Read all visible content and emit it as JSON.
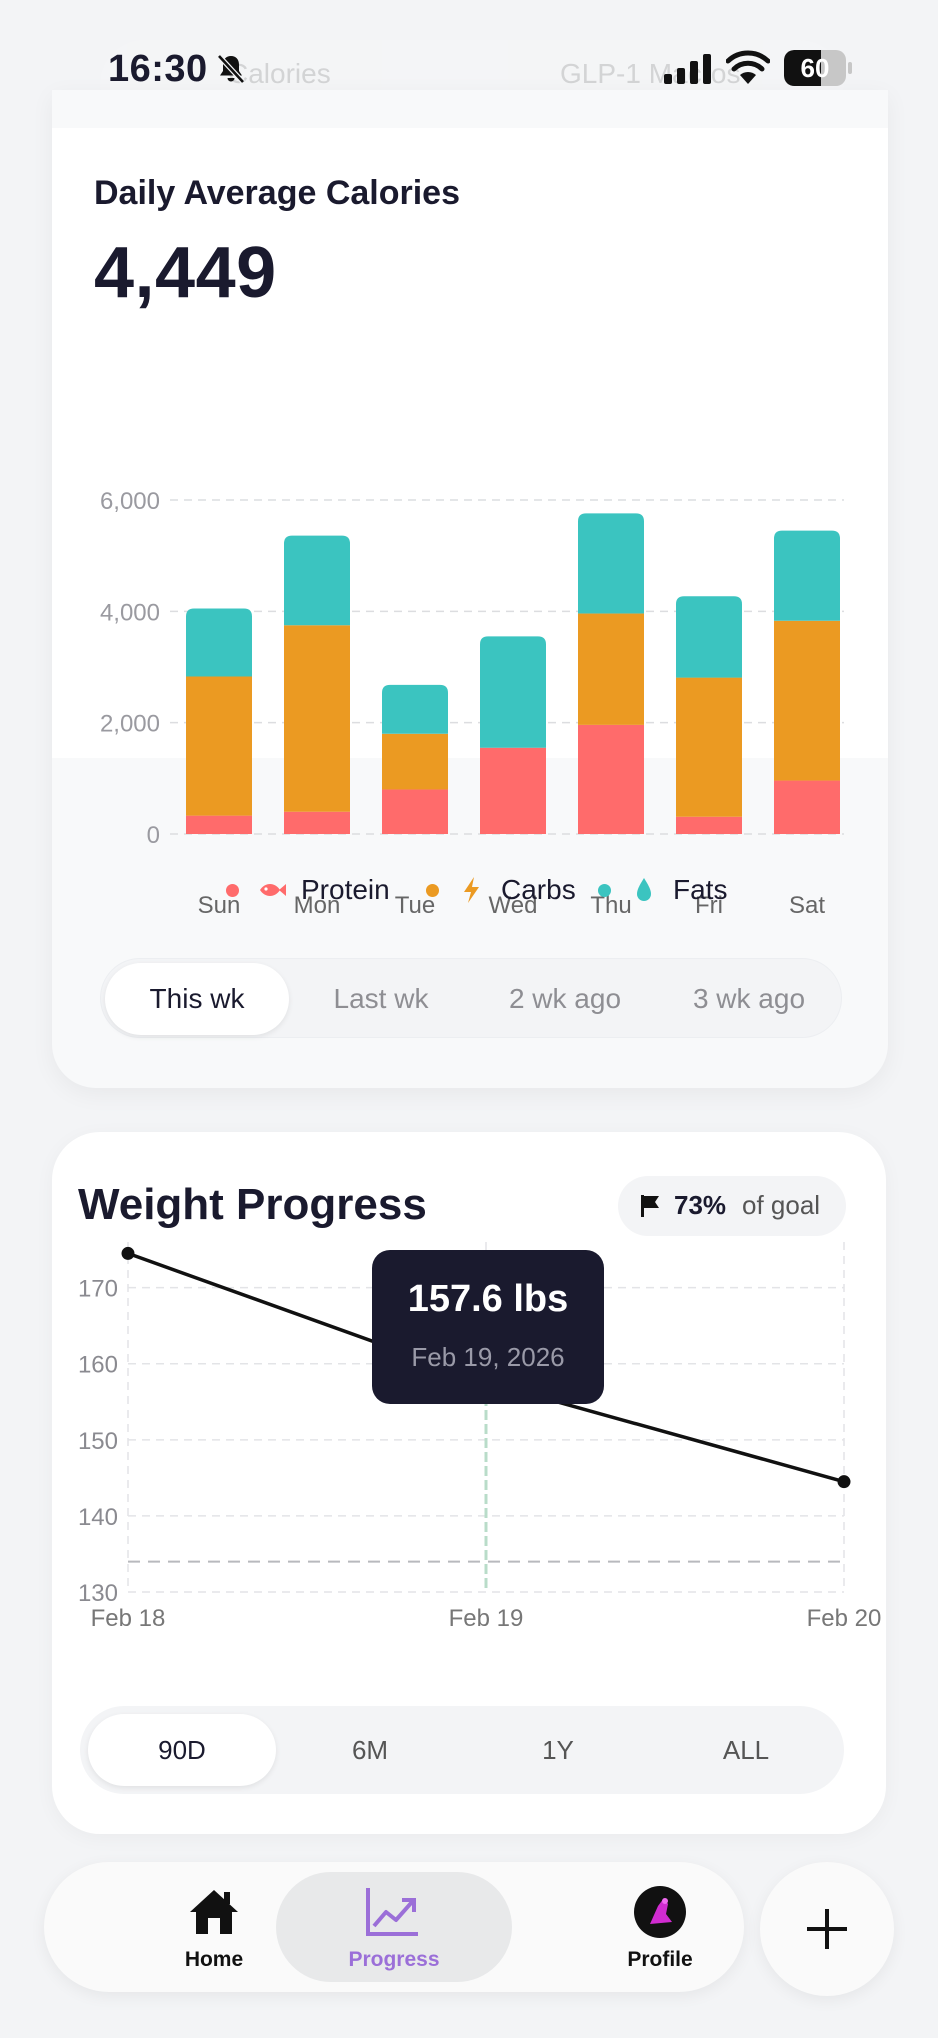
{
  "status_bar": {
    "time": "16:30",
    "battery": "60",
    "battery_level": 0.6
  },
  "top_tabs": [
    "Calories",
    "GLP-1 Macros"
  ],
  "calories_card": {
    "title": "Daily Average Calories",
    "value": "4,449",
    "legend": [
      {
        "label": "Protein",
        "color": "#ff6b6b",
        "icon": "fish-icon"
      },
      {
        "label": "Carbs",
        "color": "#eb9a22",
        "icon": "lightning-icon"
      },
      {
        "label": "Fats",
        "color": "#3bc4c0",
        "icon": "drop-icon"
      }
    ],
    "week_options": [
      "This wk",
      "Last wk",
      "2 wk ago",
      "3 wk ago"
    ],
    "active_week": 0
  },
  "chart_data": [
    {
      "type": "bar",
      "stacked": true,
      "categories": [
        "Sun",
        "Mon",
        "Tue",
        "Wed",
        "Thu",
        "Fri",
        "Sat"
      ],
      "series": [
        {
          "name": "Protein",
          "values": [
            330,
            400,
            800,
            1550,
            1960,
            310,
            960
          ]
        },
        {
          "name": "Carbs",
          "values": [
            2500,
            3350,
            1000,
            0,
            2000,
            2500,
            2870
          ]
        },
        {
          "name": "Fats",
          "values": [
            1220,
            1610,
            880,
            2000,
            1800,
            1460,
            1620
          ]
        }
      ],
      "y_ticks": [
        "0",
        "2,000",
        "4,000",
        "6,000"
      ],
      "ylim": [
        0,
        6000
      ],
      "grid": true,
      "legend": "bottom-center"
    },
    {
      "type": "line",
      "x_ticks": [
        "Feb 18",
        "Feb 19",
        "Feb 20"
      ],
      "x": [
        0,
        1,
        2
      ],
      "values": [
        174.5,
        157.6,
        144.5
      ],
      "y_ticks": [
        "130",
        "140",
        "150",
        "160",
        "170"
      ],
      "ylim": [
        130,
        176
      ],
      "goal_line": 134,
      "highlight_index": 1,
      "grid": true
    }
  ],
  "weight_card": {
    "title": "Weight Progress",
    "goal_pct": "73%",
    "goal_text": "of goal",
    "tooltip": {
      "value": "157.6 lbs",
      "date": "Feb 19, 2026"
    },
    "range_options": [
      "90D",
      "6M",
      "1Y",
      "ALL"
    ],
    "active_range": 0
  },
  "nav": {
    "items": [
      {
        "label": "Home",
        "icon": "home-icon"
      },
      {
        "label": "Progress",
        "icon": "chart-trend-icon"
      },
      {
        "label": "Profile",
        "icon": "avatar-icon"
      }
    ],
    "active": 1,
    "fab_icon": "plus-icon"
  }
}
